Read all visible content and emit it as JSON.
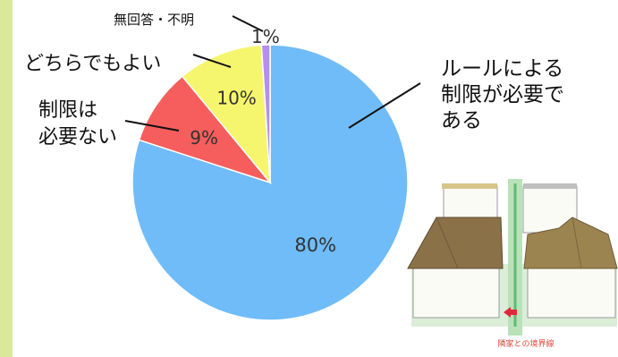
{
  "chart_data": {
    "type": "pie",
    "title": "",
    "slices": [
      {
        "label": "ルールによる制限が必要である",
        "label_lines": [
          "ルールによる",
          "制限が必要で",
          "ある"
        ],
        "value": 80,
        "value_label": "80%",
        "color": "#6fbcf8"
      },
      {
        "label": "制限は必要ない",
        "label_lines": [
          "制限は",
          "必要ない"
        ],
        "value": 9,
        "value_label": "9%",
        "color": "#f55e5c"
      },
      {
        "label": "どちらでもよい",
        "label_lines": [
          "どちらでもよい"
        ],
        "value": 10,
        "value_label": "10%",
        "color": "#f6f66e"
      },
      {
        "label": "無回答・不明",
        "label_lines": [
          "無回答・不明"
        ],
        "value": 1,
        "value_label": "1%",
        "color": "#b68ef2"
      }
    ]
  },
  "illustration": {
    "caption": "隣家との境界線",
    "colors": {
      "roof": "#8a7148",
      "wall": "#fbfbf6",
      "ground": "#dbeed8",
      "boundary": "#64b872",
      "marker": "#e0283a"
    }
  },
  "colors": {
    "side_strip": "#d9e89a"
  }
}
